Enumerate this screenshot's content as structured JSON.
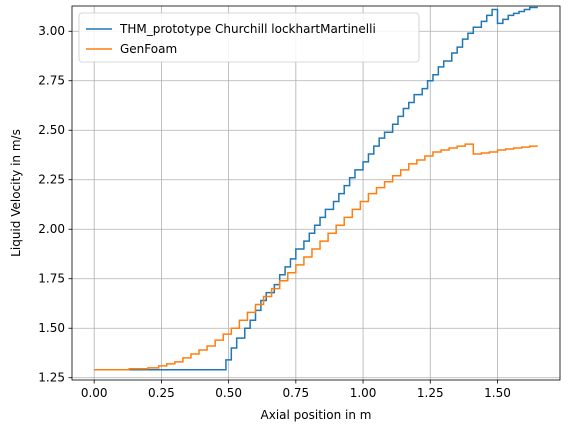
{
  "chart_data": {
    "type": "line",
    "step": true,
    "xlabel": "Axial position in m",
    "ylabel": "Liquid Velocity in m/s",
    "xlim": [
      -0.0825,
      1.7325
    ],
    "ylim": [
      1.2385,
      3.1275
    ],
    "xticks": [
      0.0,
      0.25,
      0.5,
      0.75,
      1.0,
      1.25,
      1.5
    ],
    "xtick_labels": [
      "0.00",
      "0.25",
      "0.50",
      "0.75",
      "1.00",
      "1.25",
      "1.50"
    ],
    "yticks": [
      1.25,
      1.5,
      1.75,
      2.0,
      2.25,
      2.5,
      2.75,
      3.0
    ],
    "ytick_labels": [
      "1.25",
      "1.50",
      "1.75",
      "2.00",
      "2.25",
      "2.50",
      "2.75",
      "3.00"
    ],
    "grid": true,
    "legend_position": "upper-left",
    "series": [
      {
        "name": "THM_prototype Churchill lockhartMartinelli",
        "color": "#1f77b4",
        "points": [
          [
            0.0,
            1.29
          ],
          [
            0.49,
            1.29
          ],
          [
            0.49,
            1.34
          ],
          [
            0.51,
            1.34
          ],
          [
            0.51,
            1.4
          ],
          [
            0.53,
            1.4
          ],
          [
            0.53,
            1.45
          ],
          [
            0.56,
            1.45
          ],
          [
            0.56,
            1.5
          ],
          [
            0.58,
            1.5
          ],
          [
            0.58,
            1.54
          ],
          [
            0.6,
            1.54
          ],
          [
            0.6,
            1.59
          ],
          [
            0.62,
            1.59
          ],
          [
            0.62,
            1.64
          ],
          [
            0.64,
            1.64
          ],
          [
            0.64,
            1.68
          ],
          [
            0.67,
            1.68
          ],
          [
            0.67,
            1.72
          ],
          [
            0.69,
            1.72
          ],
          [
            0.69,
            1.77
          ],
          [
            0.71,
            1.77
          ],
          [
            0.71,
            1.81
          ],
          [
            0.73,
            1.81
          ],
          [
            0.73,
            1.85
          ],
          [
            0.75,
            1.85
          ],
          [
            0.75,
            1.9
          ],
          [
            0.78,
            1.9
          ],
          [
            0.78,
            1.94
          ],
          [
            0.8,
            1.94
          ],
          [
            0.8,
            1.98
          ],
          [
            0.82,
            1.98
          ],
          [
            0.82,
            2.02
          ],
          [
            0.84,
            2.02
          ],
          [
            0.84,
            2.06
          ],
          [
            0.86,
            2.06
          ],
          [
            0.86,
            2.1
          ],
          [
            0.89,
            2.1
          ],
          [
            0.89,
            2.14
          ],
          [
            0.91,
            2.14
          ],
          [
            0.91,
            2.18
          ],
          [
            0.93,
            2.18
          ],
          [
            0.93,
            2.22
          ],
          [
            0.95,
            2.22
          ],
          [
            0.95,
            2.26
          ],
          [
            0.97,
            2.26
          ],
          [
            0.97,
            2.3
          ],
          [
            1.0,
            2.3
          ],
          [
            1.0,
            2.34
          ],
          [
            1.02,
            2.34
          ],
          [
            1.02,
            2.38
          ],
          [
            1.04,
            2.38
          ],
          [
            1.04,
            2.42
          ],
          [
            1.06,
            2.42
          ],
          [
            1.06,
            2.46
          ],
          [
            1.08,
            2.46
          ],
          [
            1.08,
            2.49
          ],
          [
            1.11,
            2.49
          ],
          [
            1.11,
            2.53
          ],
          [
            1.13,
            2.53
          ],
          [
            1.13,
            2.57
          ],
          [
            1.15,
            2.57
          ],
          [
            1.15,
            2.61
          ],
          [
            1.17,
            2.61
          ],
          [
            1.17,
            2.64
          ],
          [
            1.19,
            2.64
          ],
          [
            1.19,
            2.68
          ],
          [
            1.22,
            2.68
          ],
          [
            1.22,
            2.71
          ],
          [
            1.24,
            2.71
          ],
          [
            1.24,
            2.75
          ],
          [
            1.26,
            2.75
          ],
          [
            1.26,
            2.78
          ],
          [
            1.28,
            2.78
          ],
          [
            1.28,
            2.82
          ],
          [
            1.3,
            2.82
          ],
          [
            1.3,
            2.85
          ],
          [
            1.33,
            2.85
          ],
          [
            1.33,
            2.89
          ],
          [
            1.35,
            2.89
          ],
          [
            1.35,
            2.92
          ],
          [
            1.37,
            2.92
          ],
          [
            1.37,
            2.96
          ],
          [
            1.39,
            2.96
          ],
          [
            1.39,
            2.99
          ],
          [
            1.41,
            2.99
          ],
          [
            1.41,
            3.02
          ],
          [
            1.44,
            3.02
          ],
          [
            1.44,
            3.05
          ],
          [
            1.46,
            3.05
          ],
          [
            1.46,
            3.08
          ],
          [
            1.48,
            3.08
          ],
          [
            1.48,
            3.11
          ],
          [
            1.5,
            3.11
          ],
          [
            1.5,
            3.04
          ],
          [
            1.52,
            3.04
          ],
          [
            1.52,
            3.06
          ],
          [
            1.54,
            3.06
          ],
          [
            1.54,
            3.08
          ],
          [
            1.56,
            3.08
          ],
          [
            1.56,
            3.09
          ],
          [
            1.58,
            3.09
          ],
          [
            1.58,
            3.1
          ],
          [
            1.6,
            3.1
          ],
          [
            1.6,
            3.11
          ],
          [
            1.62,
            3.11
          ],
          [
            1.62,
            3.12
          ],
          [
            1.65,
            3.12
          ]
        ]
      },
      {
        "name": "GenFoam",
        "color": "#ff7f0e",
        "points": [
          [
            0.0,
            1.29
          ],
          [
            0.13,
            1.29
          ],
          [
            0.13,
            1.295
          ],
          [
            0.2,
            1.295
          ],
          [
            0.2,
            1.3
          ],
          [
            0.24,
            1.3
          ],
          [
            0.24,
            1.31
          ],
          [
            0.27,
            1.31
          ],
          [
            0.27,
            1.32
          ],
          [
            0.3,
            1.32
          ],
          [
            0.3,
            1.33
          ],
          [
            0.33,
            1.33
          ],
          [
            0.33,
            1.35
          ],
          [
            0.36,
            1.35
          ],
          [
            0.36,
            1.37
          ],
          [
            0.39,
            1.37
          ],
          [
            0.39,
            1.39
          ],
          [
            0.42,
            1.39
          ],
          [
            0.42,
            1.41
          ],
          [
            0.45,
            1.41
          ],
          [
            0.45,
            1.44
          ],
          [
            0.48,
            1.44
          ],
          [
            0.48,
            1.47
          ],
          [
            0.51,
            1.47
          ],
          [
            0.51,
            1.5
          ],
          [
            0.54,
            1.5
          ],
          [
            0.54,
            1.54
          ],
          [
            0.57,
            1.54
          ],
          [
            0.57,
            1.58
          ],
          [
            0.6,
            1.58
          ],
          [
            0.6,
            1.62
          ],
          [
            0.63,
            1.62
          ],
          [
            0.63,
            1.66
          ],
          [
            0.66,
            1.66
          ],
          [
            0.66,
            1.7
          ],
          [
            0.69,
            1.7
          ],
          [
            0.69,
            1.74
          ],
          [
            0.72,
            1.74
          ],
          [
            0.72,
            1.78
          ],
          [
            0.75,
            1.78
          ],
          [
            0.75,
            1.82
          ],
          [
            0.78,
            1.82
          ],
          [
            0.78,
            1.86
          ],
          [
            0.81,
            1.86
          ],
          [
            0.81,
            1.9
          ],
          [
            0.84,
            1.9
          ],
          [
            0.84,
            1.94
          ],
          [
            0.87,
            1.94
          ],
          [
            0.87,
            1.98
          ],
          [
            0.9,
            1.98
          ],
          [
            0.9,
            2.02
          ],
          [
            0.93,
            2.02
          ],
          [
            0.93,
            2.06
          ],
          [
            0.96,
            2.06
          ],
          [
            0.96,
            2.1
          ],
          [
            0.99,
            2.1
          ],
          [
            0.99,
            2.14
          ],
          [
            1.02,
            2.14
          ],
          [
            1.02,
            2.18
          ],
          [
            1.05,
            2.18
          ],
          [
            1.05,
            2.21
          ],
          [
            1.08,
            2.21
          ],
          [
            1.08,
            2.24
          ],
          [
            1.11,
            2.24
          ],
          [
            1.11,
            2.27
          ],
          [
            1.14,
            2.27
          ],
          [
            1.14,
            2.3
          ],
          [
            1.17,
            2.3
          ],
          [
            1.17,
            2.33
          ],
          [
            1.2,
            2.33
          ],
          [
            1.2,
            2.35
          ],
          [
            1.23,
            2.35
          ],
          [
            1.23,
            2.37
          ],
          [
            1.26,
            2.37
          ],
          [
            1.26,
            2.39
          ],
          [
            1.29,
            2.39
          ],
          [
            1.29,
            2.4
          ],
          [
            1.32,
            2.4
          ],
          [
            1.32,
            2.41
          ],
          [
            1.35,
            2.41
          ],
          [
            1.35,
            2.42
          ],
          [
            1.38,
            2.42
          ],
          [
            1.38,
            2.43
          ],
          [
            1.41,
            2.43
          ],
          [
            1.41,
            2.38
          ],
          [
            1.44,
            2.38
          ],
          [
            1.44,
            2.385
          ],
          [
            1.47,
            2.385
          ],
          [
            1.47,
            2.39
          ],
          [
            1.5,
            2.39
          ],
          [
            1.5,
            2.4
          ],
          [
            1.53,
            2.4
          ],
          [
            1.53,
            2.405
          ],
          [
            1.56,
            2.405
          ],
          [
            1.56,
            2.41
          ],
          [
            1.59,
            2.41
          ],
          [
            1.59,
            2.415
          ],
          [
            1.62,
            2.415
          ],
          [
            1.62,
            2.42
          ],
          [
            1.65,
            2.42
          ]
        ]
      }
    ]
  }
}
